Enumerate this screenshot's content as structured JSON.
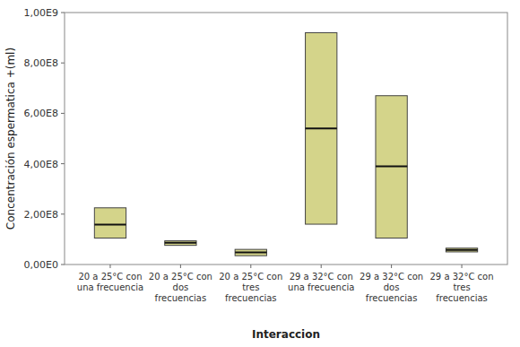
{
  "chart_data": {
    "type": "box",
    "categories": [
      "20 a 25°C con\nuna frecuencia",
      "20 a 25°C con\ndos\nfrecuencias",
      "20 a 25°C con\ntres\nfrecuencias",
      "29 a 32°C con\nuna frecuencia",
      "29 a 32°C con\ndos\nfrecuencias",
      "29 a 32°C con\ntres\nfrecuencias"
    ],
    "boxes": [
      {
        "q1": 105000000,
        "median": 158000000,
        "q3": 225000000,
        "whisker_low": 105000000,
        "whisker_high": 225000000
      },
      {
        "q1": 76000000,
        "median": 86000000,
        "q3": 94000000,
        "whisker_low": 76000000,
        "whisker_high": 94000000
      },
      {
        "q1": 35000000,
        "median": 48000000,
        "q3": 60000000,
        "whisker_low": 35000000,
        "whisker_high": 60000000
      },
      {
        "q1": 160000000,
        "median": 540000000,
        "q3": 920000000,
        "whisker_low": 160000000,
        "whisker_high": 920000000
      },
      {
        "q1": 105000000,
        "median": 390000000,
        "q3": 670000000,
        "whisker_low": 105000000,
        "whisker_high": 670000000
      },
      {
        "q1": 50000000,
        "median": 58000000,
        "q3": 65000000,
        "whisker_low": 50000000,
        "whisker_high": 65000000
      }
    ],
    "color": "#d4d48a",
    "ylabel": "Concentración espermatica +(ml)",
    "xlabel": "Interaccion",
    "ylim": [
      0,
      1000000000
    ],
    "yticks": [
      {
        "value": 0,
        "label": "0,00E0"
      },
      {
        "value": 200000000,
        "label": "2,00E8"
      },
      {
        "value": 400000000,
        "label": "4,00E8"
      },
      {
        "value": 600000000,
        "label": "6,00E8"
      },
      {
        "value": 800000000,
        "label": "8,00E8"
      },
      {
        "value": 1000000000,
        "label": "1,00E9"
      }
    ],
    "grid": false
  }
}
